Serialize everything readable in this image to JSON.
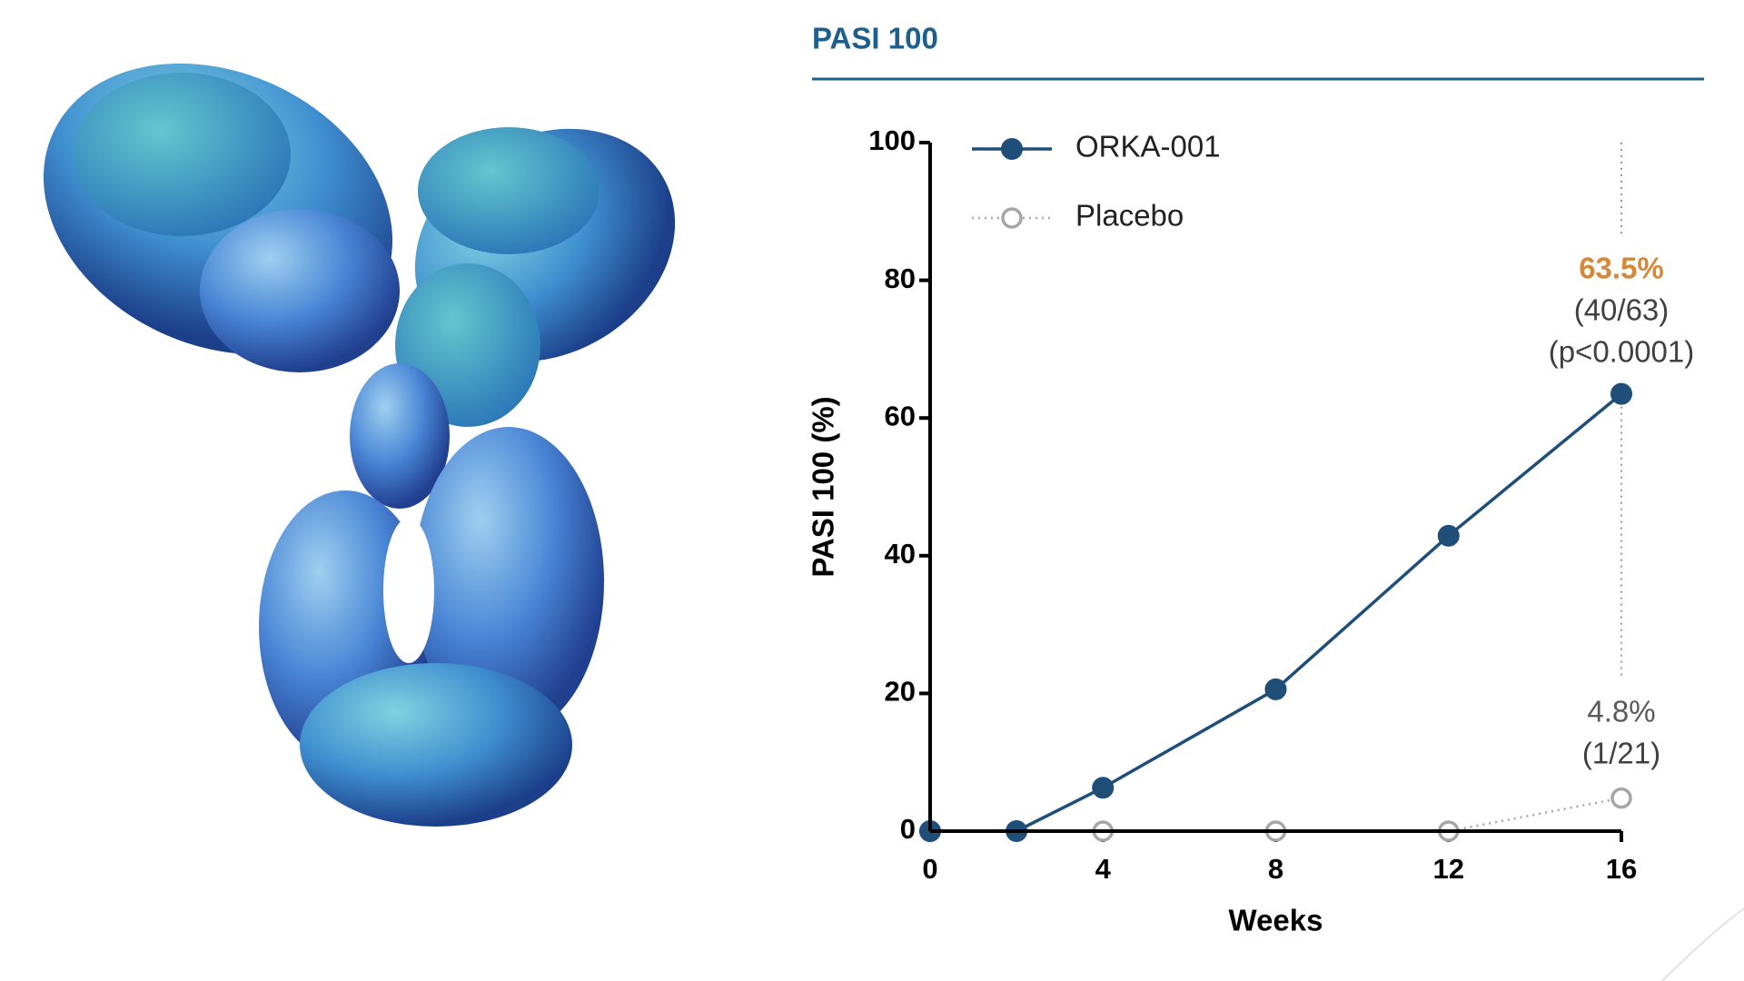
{
  "header": {
    "title": "PASI 100"
  },
  "chart_data": {
    "type": "line",
    "x": [
      0,
      2,
      4,
      8,
      12,
      16
    ],
    "series": [
      {
        "name": "Placebo",
        "color": "#a6a6a6",
        "values": [
          0,
          0,
          0,
          0,
          0,
          4.8
        ]
      },
      {
        "name": "ORKA-001",
        "color": "#1f4e79",
        "values": [
          0,
          0,
          6.3,
          20.6,
          42.9,
          63.5
        ]
      }
    ],
    "xlim": [
      0,
      16
    ],
    "xticks": [
      0,
      4,
      8,
      12,
      16
    ],
    "ylim": [
      0,
      100
    ],
    "yticks": [
      0,
      20,
      40,
      60,
      80,
      100
    ],
    "xlabel": "Weeks",
    "ylabel": "PASI 100 (%)",
    "legend": "upper left",
    "annotations": [
      {
        "series": 1,
        "lines": [
          "63.5%",
          "(40/63)",
          "(p<0.0001)"
        ],
        "color": "#d4883a"
      },
      {
        "series": 0,
        "lines": [
          "4.8%",
          "(1/21)"
        ],
        "color": "#595959"
      }
    ]
  }
}
